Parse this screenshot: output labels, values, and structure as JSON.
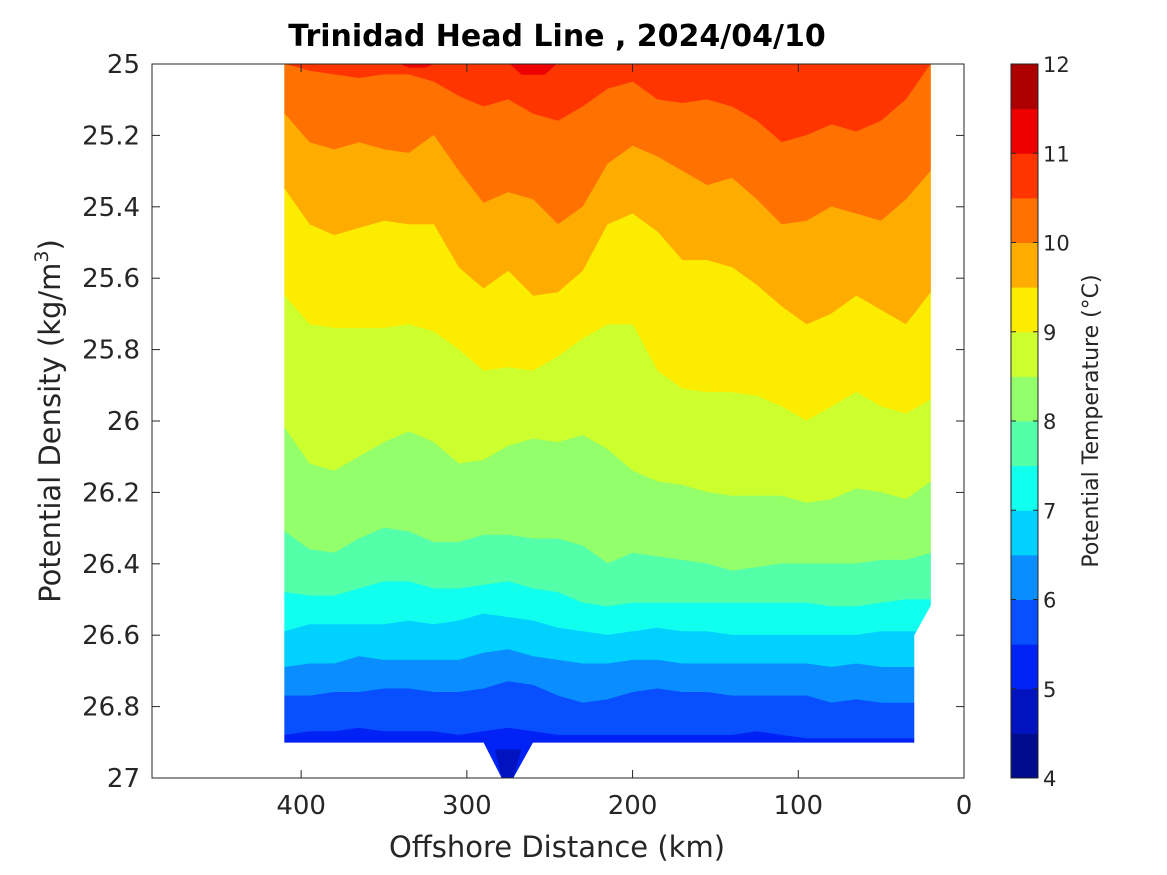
{
  "chart_data": {
    "type": "contour",
    "title": "Trinidad Head Line , 2024/04/10",
    "xlabel": "Offshore Distance (km)",
    "ylabel_main": "Potential Density (kg/m",
    "ylabel_sup": "3",
    "ylabel_end": ")",
    "colorbar_label": "Potential Temperature (°C)",
    "xlim": [
      490,
      0
    ],
    "ylim": [
      25,
      27
    ],
    "x_ticks": [
      400,
      300,
      200,
      100,
      0
    ],
    "y_ticks": [
      25,
      25.2,
      25.4,
      25.6,
      25.8,
      26,
      26.2,
      26.4,
      26.6,
      26.8,
      27
    ],
    "y_tick_labels": [
      "25",
      "25.2",
      "25.4",
      "25.6",
      "25.8",
      "26",
      "26.2",
      "26.4",
      "26.6",
      "26.8",
      "27"
    ],
    "colorbar_levels": [
      4,
      4.5,
      5,
      5.5,
      6,
      6.5,
      7,
      7.5,
      8,
      8.5,
      9,
      9.5,
      10,
      10.5,
      11,
      11.5,
      12
    ],
    "colorbar_tick_values": [
      4,
      5,
      6,
      7,
      8,
      9,
      10,
      11,
      12
    ],
    "colorbar_tick_labels": [
      "4",
      "5",
      "6",
      "7",
      "8",
      "9",
      "10",
      "11",
      "12"
    ],
    "colorbar_colors": [
      "#000c8b",
      "#0013bf",
      "#0022f5",
      "#0850ff",
      "#0a8dff",
      "#00d1ff",
      "#10ffee",
      "#54ffa9",
      "#92ff6b",
      "#cdff2f",
      "#fbec00",
      "#ffac00",
      "#ff7100",
      "#ff3500",
      "#ef0000",
      "#ad0000"
    ],
    "x_stations_km": [
      410,
      395,
      380,
      365,
      350,
      335,
      320,
      305,
      290,
      275,
      260,
      245,
      230,
      215,
      200,
      185,
      170,
      155,
      140,
      125,
      110,
      95,
      80,
      65,
      50,
      35,
      20
    ],
    "isopycnal_depth_of_isotherm_boundaries": {
      "temperature_boundaries": [
        10.5,
        10,
        9.5,
        9,
        8.5,
        8,
        7.5,
        7,
        6.5,
        6,
        5.5
      ],
      "sigma_at_station": [
        [
          25.0,
          25.02,
          25.03,
          25.04,
          25.03,
          25.03,
          25.05,
          25.09,
          25.12,
          25.1,
          25.14,
          25.16,
          25.12,
          25.07,
          25.05,
          25.1,
          25.11,
          25.1,
          25.12,
          25.16,
          25.22,
          25.2,
          25.17,
          25.19,
          25.16,
          25.1,
          25.0
        ],
        [
          25.14,
          25.22,
          25.24,
          25.22,
          25.24,
          25.25,
          25.2,
          25.3,
          25.39,
          25.36,
          25.38,
          25.45,
          25.4,
          25.28,
          25.23,
          25.26,
          25.3,
          25.34,
          25.32,
          25.38,
          25.45,
          25.44,
          25.4,
          25.42,
          25.44,
          25.38,
          25.3
        ],
        [
          25.35,
          25.45,
          25.48,
          25.46,
          25.44,
          25.45,
          25.45,
          25.57,
          25.63,
          25.58,
          25.65,
          25.64,
          25.58,
          25.45,
          25.42,
          25.47,
          25.55,
          25.55,
          25.57,
          25.62,
          25.68,
          25.73,
          25.7,
          25.65,
          25.69,
          25.73,
          25.64
        ],
        [
          25.65,
          25.73,
          25.74,
          25.74,
          25.74,
          25.73,
          25.75,
          25.8,
          25.86,
          25.85,
          25.86,
          25.82,
          25.77,
          25.73,
          25.73,
          25.86,
          25.91,
          25.92,
          25.92,
          25.93,
          25.96,
          26.0,
          25.96,
          25.92,
          25.96,
          25.98,
          25.94
        ],
        [
          26.02,
          26.12,
          26.14,
          26.1,
          26.06,
          26.03,
          26.06,
          26.12,
          26.11,
          26.07,
          26.05,
          26.06,
          26.04,
          26.08,
          26.14,
          26.17,
          26.18,
          26.2,
          26.21,
          26.21,
          26.21,
          26.23,
          26.22,
          26.19,
          26.2,
          26.22,
          26.17
        ],
        [
          26.31,
          26.36,
          26.37,
          26.33,
          26.3,
          26.31,
          26.34,
          26.34,
          26.32,
          26.32,
          26.33,
          26.33,
          26.35,
          26.4,
          26.37,
          26.38,
          26.39,
          26.4,
          26.42,
          26.41,
          26.4,
          26.4,
          26.4,
          26.4,
          26.39,
          26.39,
          26.37
        ],
        [
          26.48,
          26.49,
          26.49,
          26.47,
          26.45,
          26.45,
          26.47,
          26.47,
          26.46,
          26.45,
          26.47,
          26.48,
          26.51,
          26.52,
          26.51,
          26.51,
          26.51,
          26.51,
          26.51,
          26.51,
          26.51,
          26.51,
          26.52,
          26.52,
          26.51,
          26.5,
          26.5
        ],
        [
          26.59,
          26.57,
          26.57,
          26.57,
          26.57,
          26.56,
          26.57,
          26.56,
          26.54,
          26.55,
          26.56,
          26.58,
          26.59,
          26.6,
          26.59,
          26.58,
          26.59,
          26.59,
          26.6,
          26.6,
          26.6,
          26.6,
          26.6,
          26.6,
          26.59,
          26.59,
          26.59
        ],
        [
          26.69,
          26.68,
          26.68,
          26.66,
          26.67,
          26.67,
          26.67,
          26.67,
          26.65,
          26.64,
          26.66,
          26.67,
          26.68,
          26.68,
          26.67,
          26.67,
          26.68,
          26.68,
          26.68,
          26.68,
          26.68,
          26.68,
          26.69,
          26.68,
          26.69,
          26.69,
          26.69
        ],
        [
          26.77,
          26.77,
          26.76,
          26.76,
          26.75,
          26.75,
          26.76,
          26.76,
          26.75,
          26.73,
          26.74,
          26.77,
          26.79,
          26.78,
          26.76,
          26.75,
          26.76,
          26.76,
          26.77,
          26.77,
          26.77,
          26.77,
          26.79,
          26.78,
          26.79,
          26.79,
          26.79
        ],
        [
          26.88,
          26.87,
          26.87,
          26.86,
          26.87,
          26.87,
          26.87,
          26.88,
          26.87,
          26.86,
          26.87,
          26.88,
          26.88,
          26.88,
          26.88,
          26.88,
          26.88,
          26.88,
          26.88,
          26.87,
          26.88,
          26.89,
          26.89,
          26.89,
          26.89,
          26.89,
          26.89
        ]
      ]
    },
    "data_bottom_sigma": 26.9
  }
}
